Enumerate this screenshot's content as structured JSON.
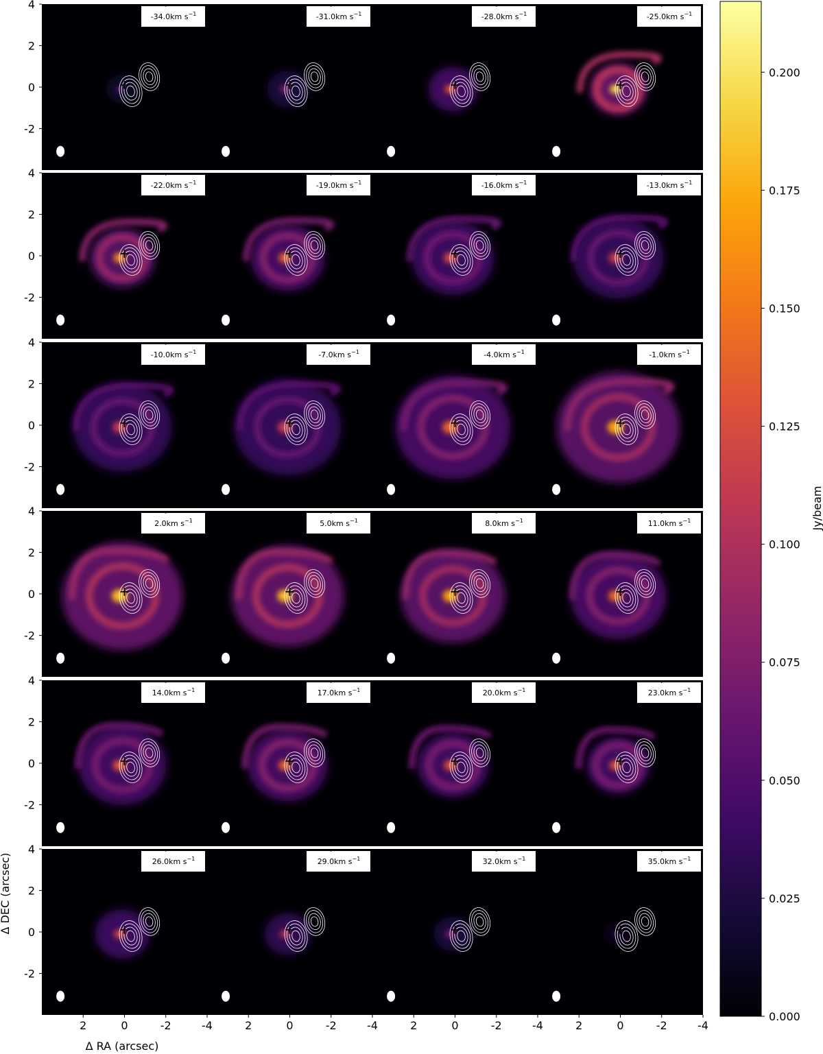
{
  "chart_data": {
    "type": "heatmap",
    "layout": "channel-map grid, 6 rows x 4 columns",
    "xlabel": "Δ RA (arcsec)",
    "ylabel": "Δ DEC (arcsec)",
    "xlim": [
      4,
      -4
    ],
    "ylim": [
      -4,
      4
    ],
    "x_ticks": [
      "2",
      "0",
      "-2",
      "-4"
    ],
    "y_ticks": [
      "4",
      "2",
      "0",
      "-2"
    ],
    "colorbar": {
      "label": "Jy/beam",
      "range": [
        0,
        0.215
      ],
      "ticks": [
        "0.000",
        "0.025",
        "0.050",
        "0.075",
        "0.100",
        "0.125",
        "0.150",
        "0.175",
        "0.200"
      ],
      "colormap": "inferno"
    },
    "unit_label": "km s",
    "unit_exponent": "−1",
    "channels": [
      {
        "velocity": "-34.0",
        "peak": 0.04
      },
      {
        "velocity": "-31.0",
        "peak": 0.07
      },
      {
        "velocity": "-28.0",
        "peak": 0.13
      },
      {
        "velocity": "-25.0",
        "peak": 0.19
      },
      {
        "velocity": "-22.0",
        "peak": 0.16
      },
      {
        "velocity": "-19.0",
        "peak": 0.14
      },
      {
        "velocity": "-16.0",
        "peak": 0.12
      },
      {
        "velocity": "-13.0",
        "peak": 0.11
      },
      {
        "velocity": "-10.0",
        "peak": 0.11
      },
      {
        "velocity": "-7.0",
        "peak": 0.11
      },
      {
        "velocity": "-4.0",
        "peak": 0.14
      },
      {
        "velocity": "-1.0",
        "peak": 0.17
      },
      {
        "velocity": "2.0",
        "peak": 0.18
      },
      {
        "velocity": "5.0",
        "peak": 0.18
      },
      {
        "velocity": "8.0",
        "peak": 0.17
      },
      {
        "velocity": "11.0",
        "peak": 0.14
      },
      {
        "velocity": "14.0",
        "peak": 0.13
      },
      {
        "velocity": "17.0",
        "peak": 0.14
      },
      {
        "velocity": "20.0",
        "peak": 0.13
      },
      {
        "velocity": "23.0",
        "peak": 0.13
      },
      {
        "velocity": "26.0",
        "peak": 0.12
      },
      {
        "velocity": "29.0",
        "peak": 0.1
      },
      {
        "velocity": "32.0",
        "peak": 0.07
      },
      {
        "velocity": "35.0",
        "peak": 0.02
      }
    ],
    "marker": "+",
    "marker_position": [
      0,
      0.1
    ]
  }
}
